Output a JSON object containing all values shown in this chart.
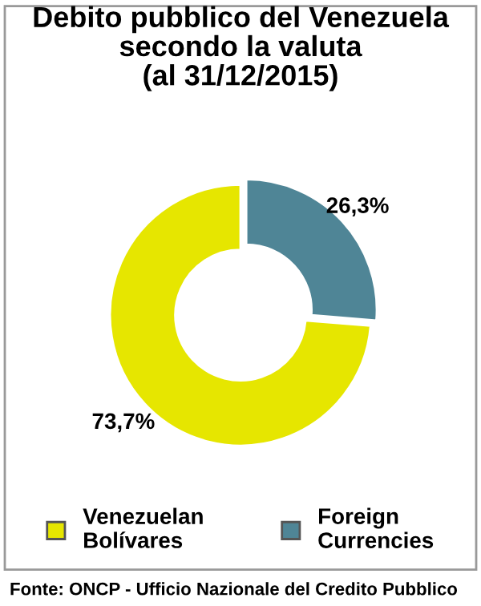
{
  "chart_data": {
    "type": "donut",
    "title": "Debito pubblico del Venezuela\nsecondo la valuta\n(al 31/12/2015)",
    "categories": [
      "Venezuelan\nBolívares",
      "Foreign\nCurrencies"
    ],
    "values": [
      73.7,
      26.3
    ],
    "value_labels": [
      "73,7%",
      "26,3%"
    ],
    "colors": [
      "#e6e600",
      "#4f8596"
    ],
    "legend": "bottom",
    "annotations": [
      "Fonte: ONCP - Ufficio Nazionale del Credito Pubblico"
    ]
  }
}
